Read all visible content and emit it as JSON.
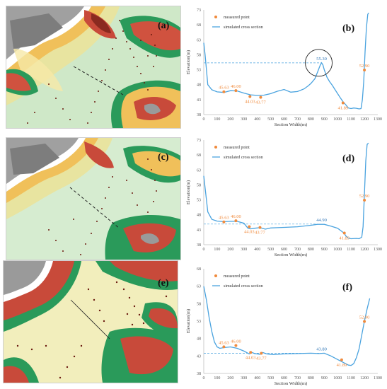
{
  "panels": {
    "map_a": {
      "letter": "(a)"
    },
    "map_c": {
      "letter": "(c)"
    },
    "map_e": {
      "letter": "(e)"
    }
  },
  "chart_data": [
    {
      "id": "b",
      "type": "line",
      "letter": "(b)",
      "xlabel": "Section Width(m)",
      "ylabel": "Elevation(m)",
      "xlim": [
        0,
        1300
      ],
      "ylim": [
        38,
        73
      ],
      "xticks": [
        0,
        100,
        200,
        300,
        400,
        500,
        600,
        700,
        800,
        900,
        1000,
        1100,
        1200,
        1300
      ],
      "yticks": [
        38,
        43,
        48,
        53,
        58,
        63,
        68,
        73
      ],
      "legend": {
        "position": "top-left",
        "entries": [
          "measured point",
          "simulated cross section"
        ]
      },
      "colors": {
        "line": "#4aa3df",
        "point": "#f08a3c",
        "highlight_label": "#2e75b6"
      },
      "series": [
        {
          "x": [
            0,
            10,
            30,
            60,
            100,
            150,
            200,
            250,
            300,
            350,
            400,
            450,
            500,
            550,
            600,
            650,
            700,
            750,
            780,
            800,
            830,
            850,
            870,
            880,
            890,
            900,
            920,
            940,
            960,
            980,
            1000,
            1020,
            1040,
            1060,
            1080,
            1100,
            1120,
            1140,
            1160,
            1175,
            1185,
            1195,
            1205,
            1215,
            1225,
            1232
          ],
          "y": [
            62,
            58,
            48,
            46.3,
            45.6,
            45.4,
            46,
            45.9,
            45.2,
            44.6,
            44.4,
            44.5,
            45,
            45.8,
            46.4,
            45.5,
            45.7,
            46.6,
            47.6,
            48.4,
            50,
            52.2,
            54.5,
            55.3,
            54.6,
            53,
            50.5,
            49,
            47.8,
            46.4,
            45,
            43.6,
            42.3,
            41.3,
            40.2,
            40,
            40.2,
            40.1,
            39.9,
            40,
            43,
            49,
            59,
            67,
            71.5,
            72
          ]
        }
      ],
      "measured_points": [
        {
          "x": 150,
          "y": 45.63,
          "label": "45.63"
        },
        {
          "x": 240,
          "y": 46.0,
          "label": "46.00"
        },
        {
          "x": 345,
          "y": 44.03,
          "label": "44.03"
        },
        {
          "x": 425,
          "y": 43.77,
          "label": "43.77"
        },
        {
          "x": 1040,
          "y": 41.89,
          "label": "41.89"
        },
        {
          "x": 1200,
          "y": 52.9,
          "label": "52.90"
        }
      ],
      "highlight": {
        "x": 880,
        "y": 55.3,
        "label": "55.30",
        "reference_y": 55.3
      }
    },
    {
      "id": "d",
      "type": "line",
      "letter": "(d)",
      "xlabel": "Section Width(m)",
      "ylabel": "Elevation(m)",
      "xlim": [
        0,
        1300
      ],
      "ylim": [
        38,
        73
      ],
      "xticks": [
        0,
        100,
        200,
        300,
        400,
        500,
        600,
        700,
        800,
        900,
        1000,
        1100,
        1200,
        1300
      ],
      "yticks": [
        38,
        43,
        48,
        53,
        58,
        63,
        68,
        73
      ],
      "legend": {
        "position": "top-left",
        "entries": [
          "measured point",
          "simulated cross section"
        ]
      },
      "colors": {
        "line": "#4aa3df",
        "point": "#f08a3c",
        "highlight_label": "#2e75b6"
      },
      "series": [
        {
          "x": [
            0,
            10,
            30,
            60,
            100,
            150,
            200,
            250,
            300,
            330,
            350,
            380,
            420,
            460,
            500,
            550,
            600,
            700,
            800,
            850,
            900,
            950,
            1000,
            1030,
            1050,
            1060,
            1080,
            1100,
            1140,
            1160,
            1180,
            1190,
            1200,
            1210,
            1220,
            1230
          ],
          "y": [
            61,
            57,
            49,
            46.5,
            45.9,
            45.7,
            45.8,
            45.8,
            45.2,
            43.5,
            43.3,
            43.5,
            43.7,
            43.2,
            43.6,
            43.7,
            43.8,
            44,
            44.5,
            44.8,
            44.8,
            44.2,
            43.5,
            42.5,
            41.8,
            41,
            40.2,
            40,
            40.1,
            40,
            40.5,
            44,
            55,
            66,
            71.5,
            72
          ]
        }
      ],
      "measured_points": [
        {
          "x": 150,
          "y": 45.63,
          "label": "45.63"
        },
        {
          "x": 240,
          "y": 46.0,
          "label": "46.00"
        },
        {
          "x": 340,
          "y": 44.03,
          "label": "44.03"
        },
        {
          "x": 420,
          "y": 43.77,
          "label": "43.77"
        },
        {
          "x": 1050,
          "y": 41.89,
          "label": "41.89"
        },
        {
          "x": 1200,
          "y": 52.9,
          "label": "52.90"
        }
      ],
      "highlight": {
        "x": 880,
        "y": 44.9,
        "label": "44.90",
        "reference_y": 44.9
      }
    },
    {
      "id": "f",
      "type": "line",
      "letter": "(f)",
      "xlabel": "Section Width(m)",
      "ylabel": "Elevation(m)",
      "xlim": [
        0,
        1300
      ],
      "ylim": [
        38,
        68
      ],
      "xticks": [
        0,
        100,
        200,
        300,
        400,
        500,
        600,
        700,
        800,
        900,
        1000,
        1100,
        1200,
        1300
      ],
      "yticks": [
        38,
        43,
        48,
        53,
        58,
        63,
        68
      ],
      "legend": {
        "position": "top-left",
        "entries": [
          "measured point",
          "simulated cross section"
        ]
      },
      "colors": {
        "line": "#4aa3df",
        "point": "#f08a3c",
        "highlight_label": "#2e75b6"
      },
      "series": [
        {
          "x": [
            0,
            20,
            40,
            60,
            80,
            100,
            120,
            150,
            200,
            250,
            300,
            340,
            360,
            380,
            420,
            440,
            470,
            520,
            600,
            700,
            800,
            860,
            900,
            950,
            1000,
            1050,
            1080,
            1100,
            1120,
            1140,
            1160,
            1180,
            1200,
            1220,
            1240
          ],
          "y": [
            63,
            59,
            54,
            50,
            47,
            45.6,
            45.2,
            45.4,
            45.6,
            45.2,
            44.4,
            43.6,
            44,
            43.7,
            43.5,
            44,
            43.6,
            43.4,
            43.6,
            43.7,
            43.8,
            43.7,
            43.8,
            43,
            42,
            41,
            40.4,
            40.3,
            40.8,
            42.5,
            45,
            49,
            53,
            56.5,
            59.5
          ]
        }
      ],
      "measured_points": [
        {
          "x": 150,
          "y": 45.63,
          "label": "45.63"
        },
        {
          "x": 240,
          "y": 46.0,
          "label": "46.00"
        },
        {
          "x": 350,
          "y": 44.03,
          "label": "44.03"
        },
        {
          "x": 430,
          "y": 43.77,
          "label": "43.77"
        },
        {
          "x": 1030,
          "y": 41.89,
          "label": "41.89"
        },
        {
          "x": 1200,
          "y": 52.9,
          "label": "52.90"
        }
      ],
      "highlight": {
        "x": 880,
        "y": 43.8,
        "label": "43.80",
        "reference_y": 43.8
      }
    }
  ]
}
